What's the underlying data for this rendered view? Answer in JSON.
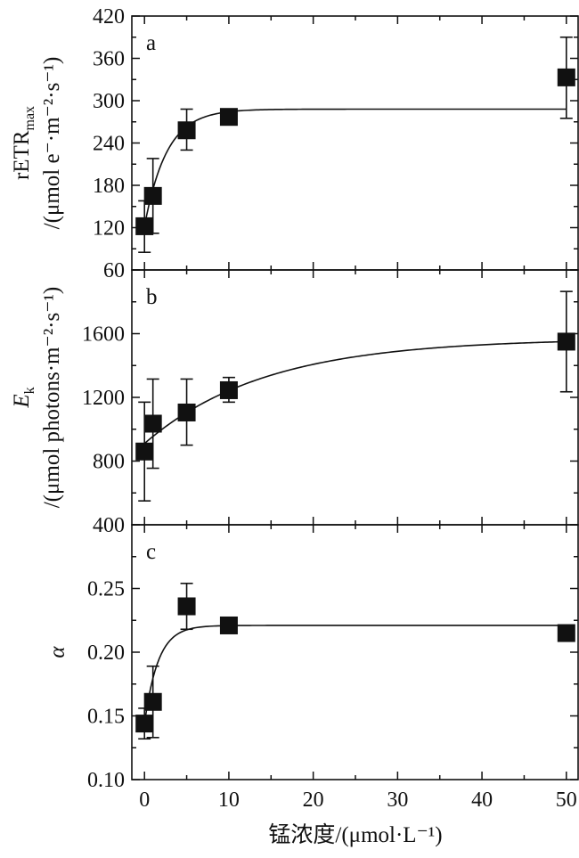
{
  "chart_data": [
    {
      "panel": "a",
      "type": "scatter",
      "ylabel_main": "rETR",
      "ylabel_sub": "max",
      "ylabel_unit": "/(μmol e⁻·m⁻²·s⁻¹)",
      "ylim": [
        60,
        420
      ],
      "yticks": [
        "60",
        "120",
        "180",
        "240",
        "300",
        "360",
        "420"
      ],
      "xlim": [
        -1.5,
        51.5
      ],
      "points": [
        {
          "x": 0,
          "y": 122,
          "err_low": 85,
          "err_high": 158
        },
        {
          "x": 1,
          "y": 165,
          "err_low": 112,
          "err_high": 218
        },
        {
          "x": 5,
          "y": 258,
          "err_low": 230,
          "err_high": 288
        },
        {
          "x": 10,
          "y": 277,
          "err_low": 275,
          "err_high": 281
        },
        {
          "x": 50,
          "y": 333,
          "err_low": 275,
          "err_high": 390
        }
      ],
      "fit": {
        "kind": "saturating",
        "y0": 122,
        "ymax": 288,
        "k": 0.38
      }
    },
    {
      "panel": "b",
      "type": "scatter",
      "ylabel_main": "E",
      "ylabel_sub": "k",
      "ylabel_unit": "/(μmol photons·m⁻²·s⁻¹)",
      "ylim": [
        400,
        2000
      ],
      "yticks": [
        "400",
        "800",
        "1200",
        "1600"
      ],
      "xlim": [
        -1.5,
        51.5
      ],
      "points": [
        {
          "x": 0,
          "y": 860,
          "err_low": 550,
          "err_high": 1170
        },
        {
          "x": 1,
          "y": 1035,
          "err_low": 755,
          "err_high": 1315
        },
        {
          "x": 5,
          "y": 1105,
          "err_low": 900,
          "err_high": 1315
        },
        {
          "x": 10,
          "y": 1245,
          "err_low": 1170,
          "err_high": 1325
        },
        {
          "x": 50,
          "y": 1550,
          "err_low": 1235,
          "err_high": 1865
        }
      ],
      "fit": {
        "kind": "saturating",
        "y0": 910,
        "ymax": 1570,
        "k": 0.07
      }
    },
    {
      "panel": "c",
      "type": "scatter",
      "ylabel_main": "α",
      "ylim": [
        0.1,
        0.3
      ],
      "yticks": [
        "0.10",
        "0.15",
        "0.20",
        "0.25"
      ],
      "xlabel": "锰浓度/(μmol·L⁻¹)",
      "xticks": [
        "0",
        "10",
        "20",
        "30",
        "40",
        "50"
      ],
      "xlim": [
        -1.5,
        51.5
      ],
      "points": [
        {
          "x": 0,
          "y": 0.144,
          "err_low": 0.132,
          "err_high": 0.156
        },
        {
          "x": 1,
          "y": 0.161,
          "err_low": 0.133,
          "err_high": 0.189
        },
        {
          "x": 5,
          "y": 0.236,
          "err_low": 0.218,
          "err_high": 0.254
        },
        {
          "x": 10,
          "y": 0.221,
          "err_low": 0.219,
          "err_high": 0.223
        },
        {
          "x": 50,
          "y": 0.215,
          "err_low": 0.211,
          "err_high": 0.219
        }
      ],
      "fit": {
        "kind": "saturating",
        "y0": 0.144,
        "ymax": 0.221,
        "k": 0.62
      }
    }
  ]
}
